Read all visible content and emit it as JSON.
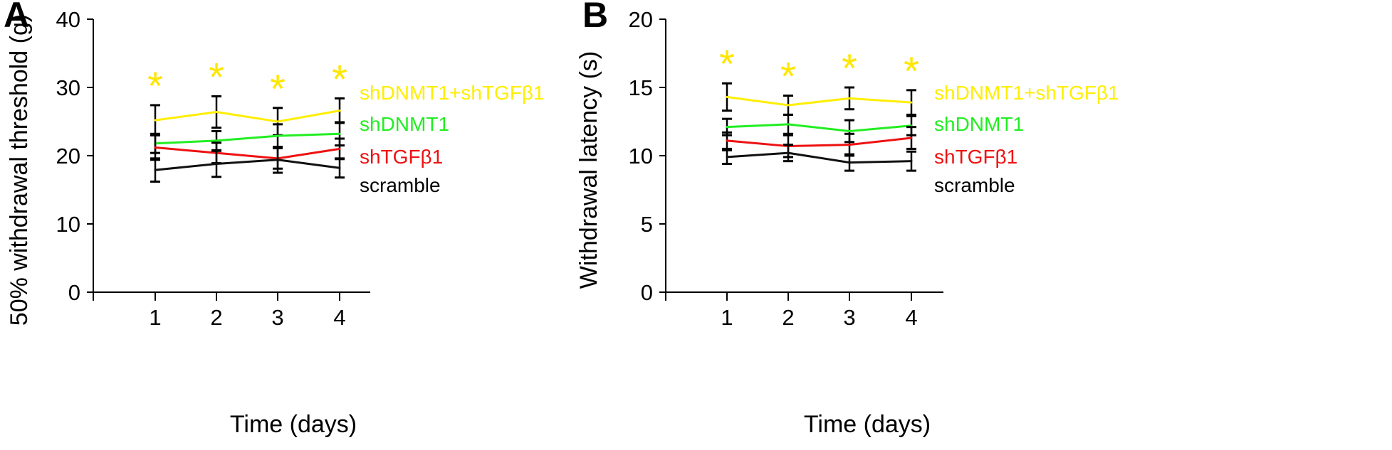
{
  "colors": {
    "yellow": "#ffee00",
    "green": "#22ee22",
    "red": "#ee1111",
    "black": "#111111",
    "star": "#ffe600"
  },
  "chart_data": [
    {
      "panel": "A",
      "type": "line",
      "xlabel": "Time (days)",
      "ylabel": "50% withdrawal threshold (g)",
      "x": [
        1,
        2,
        3,
        4
      ],
      "xticks": [
        "1",
        "2",
        "3",
        "4"
      ],
      "ylim": [
        0,
        40
      ],
      "yticks": [
        "0",
        "10",
        "20",
        "30",
        "40"
      ],
      "grid": false,
      "significance": [
        "*",
        "*",
        "*",
        "*"
      ],
      "series": [
        {
          "name": "shDNMT1+shTGFβ1",
          "color": "yellow",
          "values": [
            25.2,
            26.4,
            25.0,
            26.6
          ],
          "err": [
            2.2,
            2.3,
            2.0,
            1.8
          ]
        },
        {
          "name": "shDNMT1",
          "color": "green",
          "values": [
            21.8,
            22.2,
            22.9,
            23.2
          ],
          "err": [
            1.4,
            1.4,
            1.7,
            1.7
          ]
        },
        {
          "name": "shTGFβ1",
          "color": "red",
          "values": [
            21.2,
            20.4,
            19.6,
            21.0
          ],
          "err": [
            1.8,
            1.5,
            1.5,
            1.5
          ]
        },
        {
          "name": "scramble",
          "color": "black",
          "values": [
            17.9,
            18.8,
            19.4,
            18.2
          ],
          "err": [
            1.7,
            1.9,
            1.9,
            1.4
          ]
        }
      ]
    },
    {
      "panel": "B",
      "type": "line",
      "xlabel": "Time (days)",
      "ylabel": "Withdrawal latency (s)",
      "x": [
        1,
        2,
        3,
        4
      ],
      "xticks": [
        "1",
        "2",
        "3",
        "4"
      ],
      "ylim": [
        0,
        20
      ],
      "yticks": [
        "0",
        "5",
        "10",
        "15",
        "20"
      ],
      "grid": false,
      "significance": [
        "*",
        "*",
        "*",
        "*"
      ],
      "series": [
        {
          "name": "shDNMT1+shTGFβ1",
          "color": "yellow",
          "values": [
            14.3,
            13.7,
            14.2,
            13.9
          ],
          "err": [
            1.0,
            0.7,
            0.8,
            0.9
          ]
        },
        {
          "name": "shDNMT1",
          "color": "green",
          "values": [
            12.1,
            12.3,
            11.8,
            12.2
          ],
          "err": [
            0.6,
            0.7,
            0.8,
            0.7
          ]
        },
        {
          "name": "shTGFβ1",
          "color": "red",
          "values": [
            11.1,
            10.7,
            10.8,
            11.3
          ],
          "err": [
            0.6,
            0.8,
            0.8,
            0.8
          ]
        },
        {
          "name": "scramble",
          "color": "black",
          "values": [
            9.9,
            10.2,
            9.5,
            9.6
          ],
          "err": [
            0.5,
            0.6,
            0.6,
            0.7
          ]
        }
      ]
    }
  ]
}
